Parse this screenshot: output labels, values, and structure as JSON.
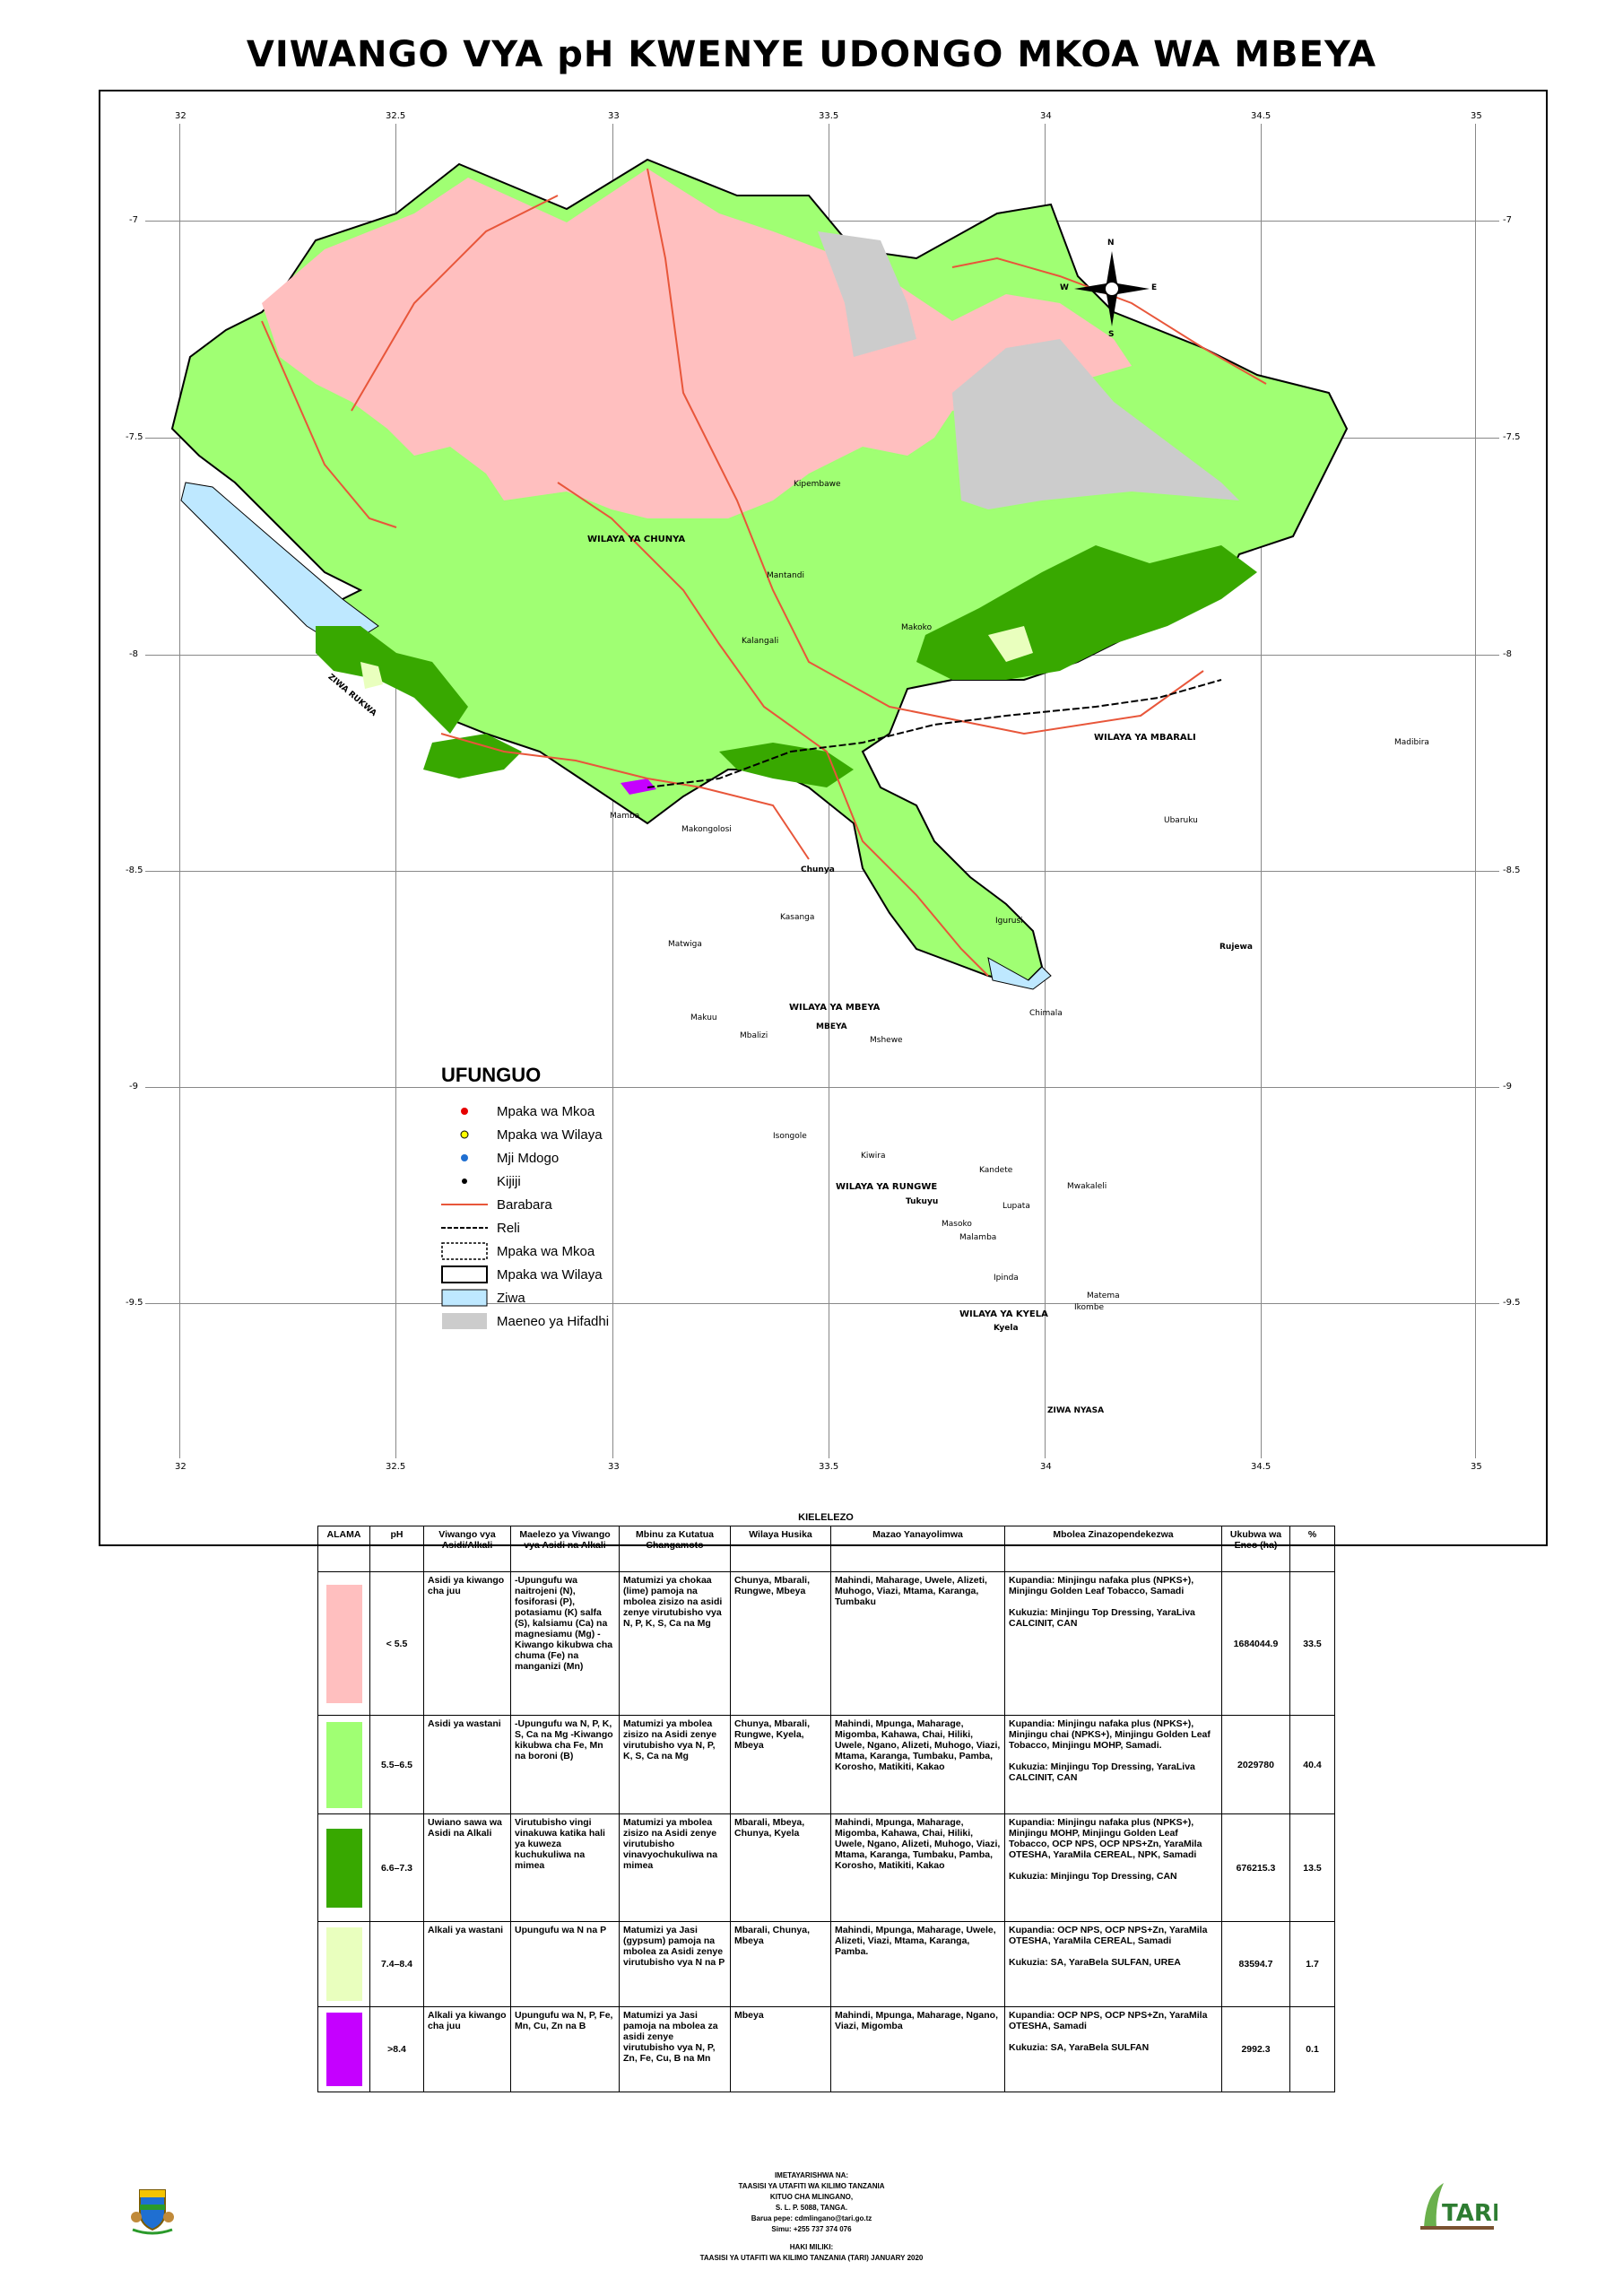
{
  "title": "VIWANGO VYA pH KWENYE UDONGO MKOA WA MBEYA",
  "axes": {
    "lon_ticks": [
      "32",
      "32.5",
      "33",
      "33.5",
      "34",
      "34.5",
      "35"
    ],
    "lat_ticks": [
      "-7",
      "-7.5",
      "-8",
      "-8.5",
      "-9",
      "-9.5"
    ]
  },
  "map_labels": {
    "districts": [
      "WILAYA YA CHUNYA",
      "WILAYA YA MBARALI",
      "WILAYA YA MBEYA",
      "WILAYA YA RUNGWE",
      "WILAYA YA KYELA"
    ],
    "lakes": [
      "ZIWA RUKWA",
      "ZIWA NYASA"
    ],
    "towns": [
      "Chunya",
      "MBEYA",
      "Rujewa",
      "Tukuyu",
      "Kyela"
    ],
    "villages": [
      "Kipembawe",
      "Mamba",
      "Makongolosi",
      "Matwiga",
      "Kasanga",
      "Makuu",
      "Mantandi",
      "Makoko",
      "Kalangali",
      "Madibira",
      "Ubaruku",
      "Igurusi",
      "Chimala",
      "Mbalizi",
      "Mshewe",
      "Ipinda",
      "Matema",
      "Ikombe",
      "Kiwira",
      "Masoko",
      "Lupata",
      "Mwakaleli",
      "Isongole",
      "Malamba",
      "Kandete"
    ],
    "compass": {
      "n": "N",
      "s": "S",
      "e": "E",
      "w": "W"
    }
  },
  "legend": {
    "title": "UFUNGUO",
    "items": [
      {
        "label": "Mpaka wa Mkoa",
        "symbol": "red-dot"
      },
      {
        "label": "Mpaka wa Wilaya",
        "symbol": "yellow-dot"
      },
      {
        "label": "Mji Mdogo",
        "symbol": "blue-dot"
      },
      {
        "label": "Kijiji",
        "symbol": "black-dot"
      },
      {
        "label": "Barabara",
        "symbol": "red-line"
      },
      {
        "label": "Reli",
        "symbol": "rail-line"
      },
      {
        "label": "Mpaka wa Mkoa",
        "symbol": "dashed-box"
      },
      {
        "label": "Mpaka wa Wilaya",
        "symbol": "solid-box"
      },
      {
        "label": "Ziwa",
        "symbol": "lake-box"
      },
      {
        "label": "Maeneo ya Hifadhi",
        "symbol": "reserve-box"
      }
    ]
  },
  "colors": {
    "ph_lt_5_5": "#ffbfbf",
    "ph_5_5_6_5": "#a0ff73",
    "ph_6_6_7_3": "#38a800",
    "ph_7_4_8_4": "#e9ffbe",
    "ph_gt_8_4": "#c500ff",
    "lake": "#bee8ff",
    "reserve": "#cccccc",
    "road": "#e8563a"
  },
  "table": {
    "caption": "KIELELEZO",
    "headers": [
      "ALAMA",
      "pH",
      "Viwango vya Asidi/Alkali",
      "Maelezo ya Viwango vya Asidi na Alkali",
      "Mbinu za Kutatua Changamoto",
      "Wilaya Husika",
      "Mazao Yanayolimwa",
      "Mbolea Zinazopendekezwa",
      "Ukubwa wa Eneo (ha)",
      "%"
    ],
    "rows": [
      {
        "color": "#ffbfbf",
        "ph": "< 5.5",
        "level": "Asidi ya kiwango cha juu",
        "desc": "-Upungufu wa naitrojeni (N), fosiforasi (P), potasiamu (K) salfa (S), kalsiamu (Ca) na magnesiamu (Mg) -Kiwango kikubwa cha chuma (Fe) na manganizi (Mn)",
        "solution": "Matumizi ya chokaa (lime) pamoja na mbolea zisizo na asidi zenye virutubisho vya N, P, K, S, Ca na Mg",
        "districts": "Chunya, Mbarali, Rungwe, Mbeya",
        "crops": "Mahindi, Maharage, Uwele, Alizeti, Muhogo, Viazi, Mtama, Karanga, Tumbaku",
        "fertilizer": "Kupandia: Minjingu nafaka plus (NPKS+), Minjingu Golden Leaf Tobacco, Samadi\n\nKukuzia: Minjingu Top Dressing, YaraLiva CALCINIT, CAN",
        "area": "1684044.9",
        "percent": "33.5"
      },
      {
        "color": "#a0ff73",
        "ph": "5.5–6.5",
        "level": "Asidi ya wastani",
        "desc": "-Upungufu wa N, P, K, S, Ca na Mg -Kiwango kikubwa cha Fe, Mn na boroni (B)",
        "solution": "Matumizi ya mbolea zisizo na Asidi zenye virutubisho vya N, P, K, S, Ca na Mg",
        "districts": "Chunya, Mbarali, Rungwe, Kyela, Mbeya",
        "crops": "Mahindi, Mpunga, Maharage, Migomba, Kahawa, Chai, Hiliki, Uwele, Ngano, Alizeti, Muhogo, Viazi, Mtama, Karanga, Tumbaku, Pamba, Korosho, Matikiti, Kakao",
        "fertilizer": "Kupandia: Minjingu nafaka plus (NPKS+), Minjingu chai (NPKS+), Minjingu Golden Leaf Tobacco, Minjingu MOHP, Samadi.\n\nKukuzia: Minjingu Top Dressing, YaraLiva CALCINIT, CAN",
        "area": "2029780",
        "percent": "40.4"
      },
      {
        "color": "#38a800",
        "ph": "6.6–7.3",
        "level": "Uwiano sawa wa Asidi na Alkali",
        "desc": "Virutubisho vingi vinakuwa katika hali ya kuweza kuchukuliwa na mimea",
        "solution": "Matumizi ya mbolea zisizo na Asidi zenye virutubisho vinavyochukuliwa na mimea",
        "districts": "Mbarali, Mbeya, Chunya, Kyela",
        "crops": "Mahindi, Mpunga, Maharage, Migomba, Kahawa, Chai, Hiliki, Uwele, Ngano, Alizeti, Muhogo, Viazi, Mtama, Karanga, Tumbaku, Pamba, Korosho, Matikiti, Kakao",
        "fertilizer": "Kupandia: Minjingu nafaka plus (NPKS+), Minjingu MOHP, Minjingu Golden Leaf Tobacco, OCP NPS, OCP NPS+Zn, YaraMila OTESHA, YaraMila CEREAL, NPK, Samadi\n\nKukuzia: Minjingu Top Dressing, CAN",
        "area": "676215.3",
        "percent": "13.5"
      },
      {
        "color": "#e9ffbe",
        "ph": "7.4–8.4",
        "level": "Alkali ya wastani",
        "desc": "Upungufu wa N na P",
        "solution": "Matumizi ya Jasi (gypsum) pamoja na mbolea za Asidi zenye virutubisho vya N na P",
        "districts": "Mbarali, Chunya, Mbeya",
        "crops": "Mahindi, Mpunga, Maharage, Uwele, Alizeti, Viazi, Mtama, Karanga, Pamba.",
        "fertilizer": "Kupandia: OCP NPS, OCP NPS+Zn, YaraMila OTESHA, YaraMila CEREAL, Samadi\n\nKukuzia: SA, YaraBela SULFAN, UREA",
        "area": "83594.7",
        "percent": "1.7"
      },
      {
        "color": "#c500ff",
        "ph": ">8.4",
        "level": "Alkali ya kiwango cha juu",
        "desc": "Upungufu wa N, P, Fe, Mn, Cu, Zn na B",
        "solution": "Matumizi ya Jasi pamoja na mbolea za asidi zenye virutubisho vya N, P, Zn, Fe, Cu, B na Mn",
        "districts": "Mbeya",
        "crops": "Mahindi, Mpunga, Maharage, Ngano, Viazi, Migomba",
        "fertilizer": "Kupandia: OCP NPS, OCP NPS+Zn, YaraMila OTESHA, Samadi\n\nKukuzia: SA, YaraBela SULFAN",
        "area": "2992.3",
        "percent": "0.1"
      }
    ]
  },
  "credits": {
    "prepared_by": "IMETAYARISHWA NA:",
    "institute": "TAASISI YA UTAFITI WA KILIMO TANZANIA",
    "center": "KITUO CHA MLINGANO,",
    "address": "S. L. P. 5088, TANGA.",
    "email": "Barua pepe: cdmlingano@tari.go.tz",
    "phone": "Simu: +255 737 374 076",
    "copyright_label": "HAKI MILIKI:",
    "copyright": "TAASISI YA UTAFITI WA KILIMO TANZANIA (TARI) JANUARY 2020",
    "tari_logo": "TARI"
  }
}
